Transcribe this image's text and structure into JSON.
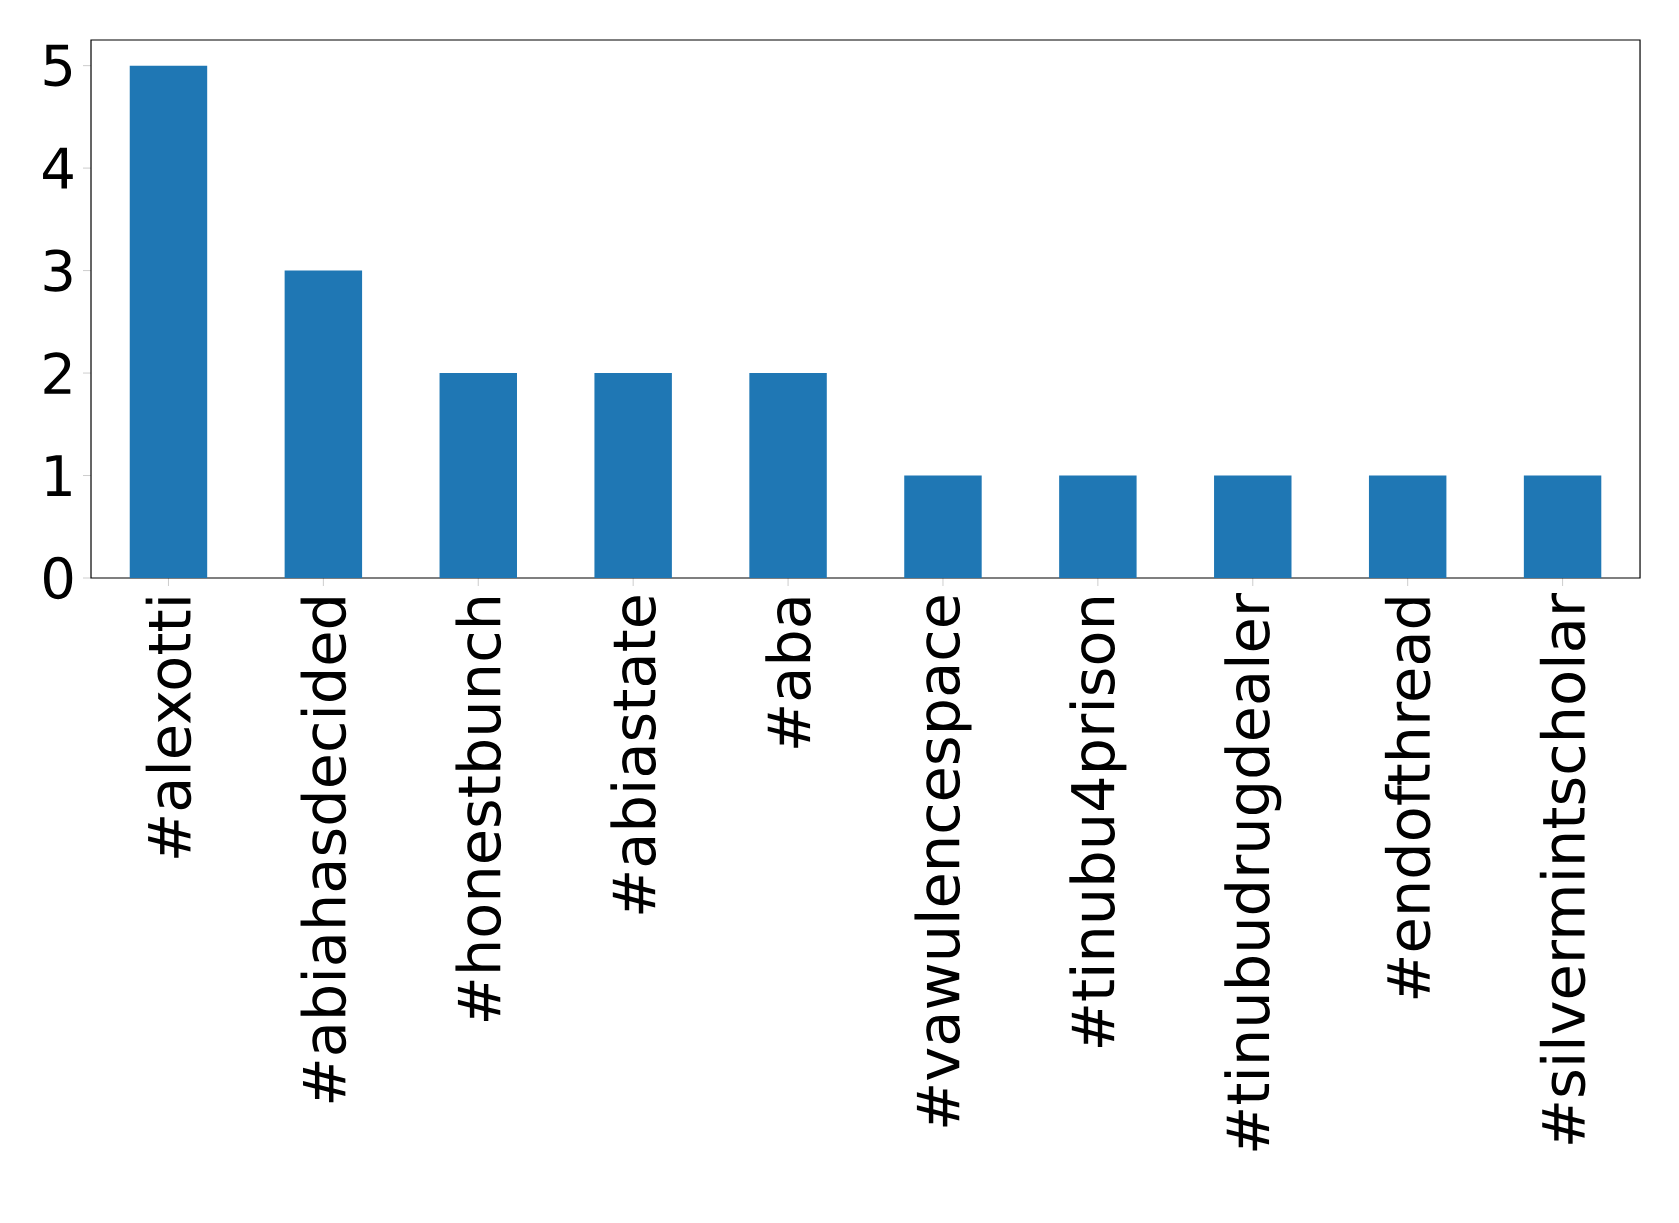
{
  "chart_data": {
    "type": "bar",
    "categories": [
      "#alexotti",
      "#abiahasdecided",
      "#honestbunch",
      "#abiastate",
      "#aba",
      "#vawulencespace",
      "#tinubu4prison",
      "#tinubudrugdealer",
      "#endofthread",
      "#silvermintscholar"
    ],
    "values": [
      5,
      3,
      2,
      2,
      2,
      1,
      1,
      1,
      1,
      1
    ],
    "color": "#1f77b4",
    "ylim": [
      0,
      5.25
    ],
    "yticks": [
      0,
      1,
      2,
      3,
      4,
      5
    ],
    "grid": false
  }
}
